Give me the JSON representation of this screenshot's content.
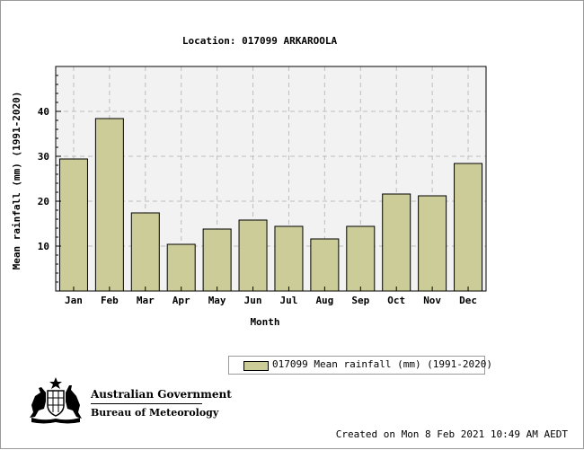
{
  "chart_data": {
    "type": "bar",
    "title": "Location: 017099 ARKAROOLA",
    "xlabel": "Month",
    "ylabel": "Mean rainfall (mm) (1991-2020)",
    "categories": [
      "Jan",
      "Feb",
      "Mar",
      "Apr",
      "May",
      "Jun",
      "Jul",
      "Aug",
      "Sep",
      "Oct",
      "Nov",
      "Dec"
    ],
    "series": [
      {
        "name": "017099 Mean rainfall (mm) (1991-2020)",
        "values": [
          29.4,
          38.4,
          17.4,
          10.4,
          13.8,
          15.8,
          14.4,
          11.6,
          14.4,
          21.6,
          21.2,
          28.4
        ],
        "color": "#cccc99"
      }
    ],
    "ylim": [
      0,
      50
    ],
    "yticks": [
      10,
      20,
      30,
      40
    ],
    "grid": true,
    "legend_position": "bottom-right"
  },
  "colors": {
    "plot_background": "#f2f2f2",
    "grid": "#bdbdbd",
    "bar_fill": "#cccc99"
  },
  "legend": {
    "label": "017099 Mean rainfall (mm) (1991-2020)"
  },
  "logo": {
    "icon": "coat-of-arms-icon",
    "government": "Australian Government",
    "bureau": "Bureau of Meteorology"
  },
  "footer": {
    "created": "Created on Mon  8 Feb 2021 10:49 AM AEDT"
  }
}
